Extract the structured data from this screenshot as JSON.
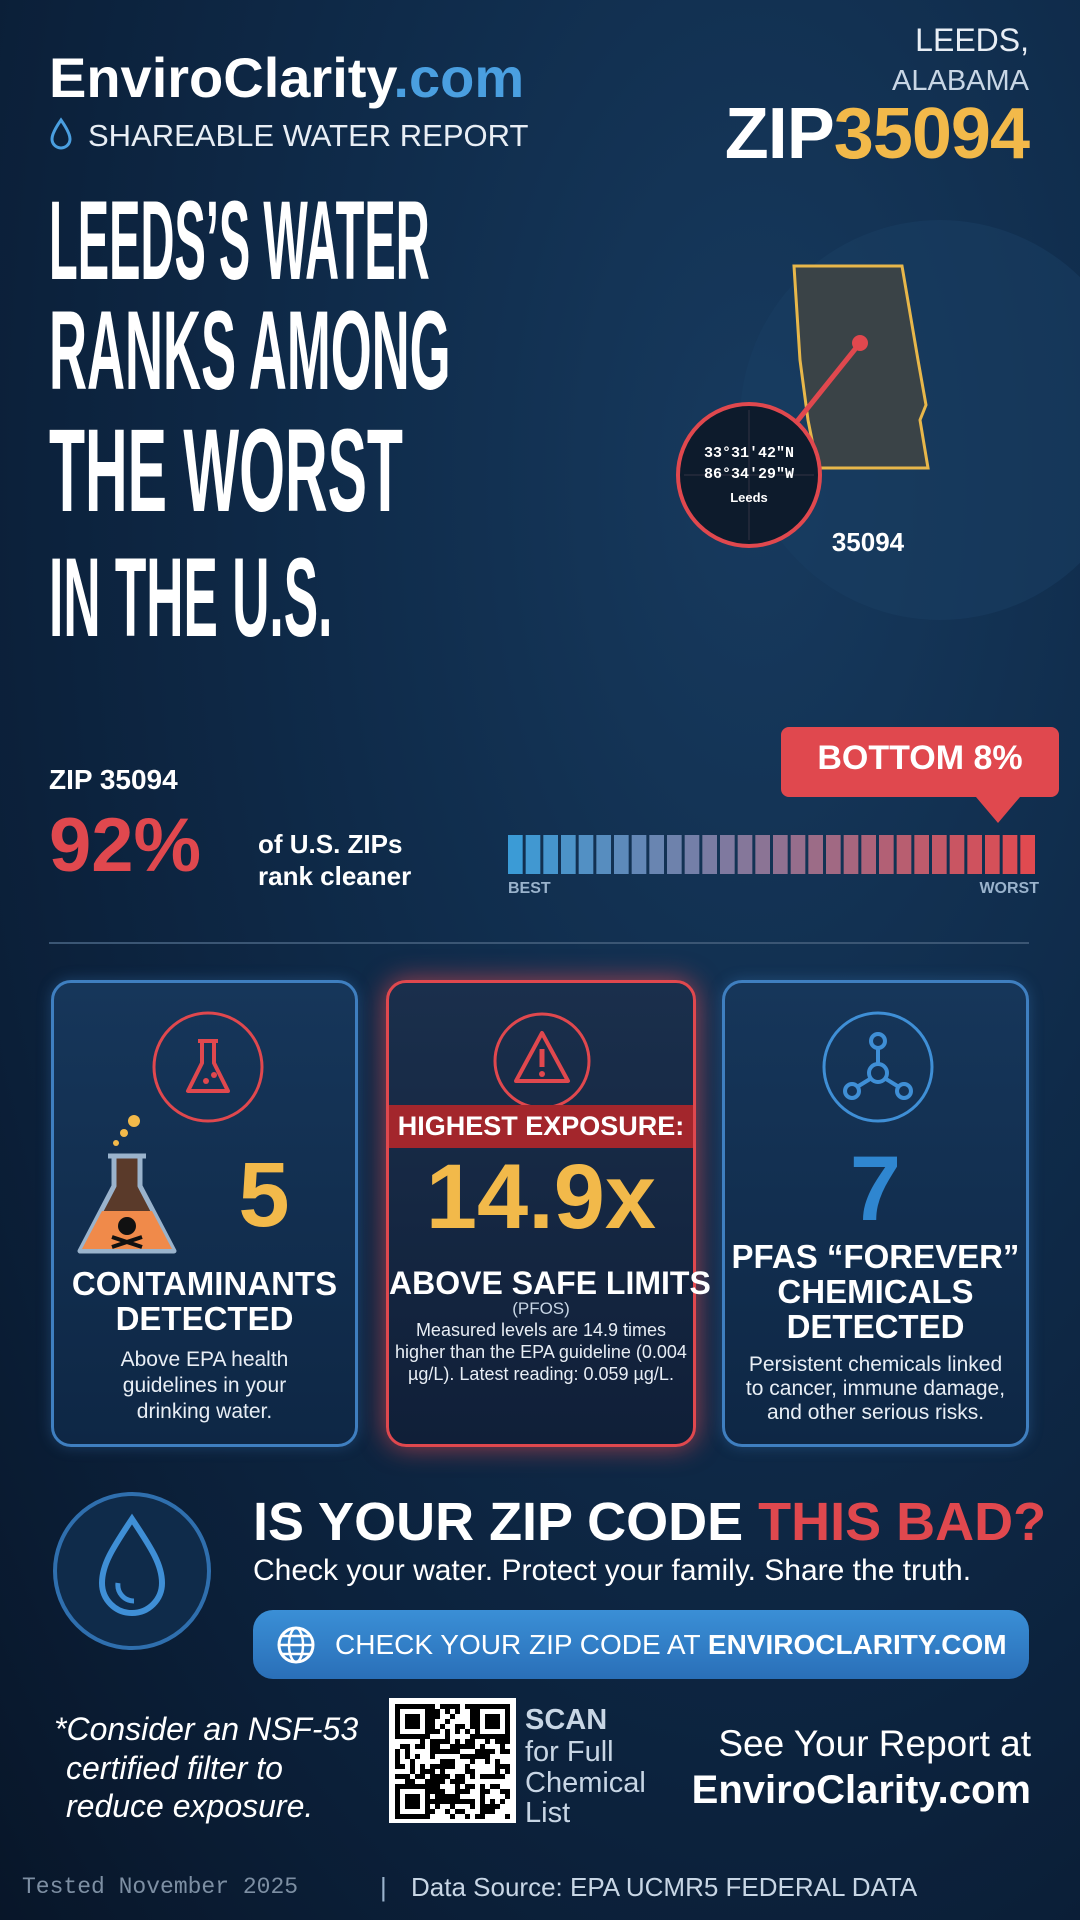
{
  "header": {
    "brand_name": "EnviroClarity",
    "brand_tld": ".com",
    "subtitle": "SHAREABLE WATER REPORT",
    "city": "LEEDS,",
    "state": "ALABAMA",
    "zip_prefix": "ZIP",
    "zip": "35094"
  },
  "headline": {
    "lines": [
      "LEEDS’S WATER",
      "RANKS AMONG",
      "THE WORST",
      "IN THE U.S."
    ]
  },
  "map": {
    "lat": "33°31′42″N",
    "lon": "86°34′29″W",
    "place": "Leeds",
    "zip": "35094"
  },
  "ranking": {
    "zip_label": "ZIP 35094",
    "percent": "92%",
    "percent_text": [
      "of U.S. ZIPs",
      "rank cleaner"
    ],
    "badge": "BOTTOM 8%",
    "scale_best": "BEST",
    "scale_worst": "WORST"
  },
  "cards": [
    {
      "number": "5",
      "title": [
        "CONTAMINANTS",
        "DETECTED"
      ],
      "text": [
        "Above EPA health",
        "guidelines in your",
        "drinking water."
      ]
    },
    {
      "banner": "HIGHEST EXPOSURE:",
      "number": "14.9x",
      "title": [
        "ABOVE SAFE LIMITS"
      ],
      "note": "(PFOS)",
      "text": [
        "Measured levels are 14.9 times",
        "higher than the EPA guideline (0.004",
        "µg/L). Latest reading: 0.059 µg/L."
      ]
    },
    {
      "number": "7",
      "title": [
        "PFAS “FOREVER”",
        "CHEMICALS",
        "DETECTED"
      ],
      "text": [
        "Persistent chemicals linked",
        "to cancer, immune damage,",
        "and other serious risks."
      ]
    }
  ],
  "cta": {
    "question": "IS YOUR ZIP CODE",
    "question_highlight": "THIS BAD?",
    "tagline": "Check your water. Protect your family. Share the truth.",
    "button": "CHECK YOUR ZIP CODE AT",
    "button_bold": "ENVIROCLARITY.COM"
  },
  "footer": {
    "filter_note": [
      "*Consider an NSF-53",
      "certified filter to",
      "reduce exposure."
    ],
    "scan": [
      "SCAN",
      "for Full",
      "Chemical",
      "List"
    ],
    "report": [
      "See Your Report at",
      "EnviroClarity.com"
    ],
    "tested": "Tested November 2025",
    "separator": "|",
    "source": "Data Source: EPA UCMR5 FEDERAL DATA"
  }
}
